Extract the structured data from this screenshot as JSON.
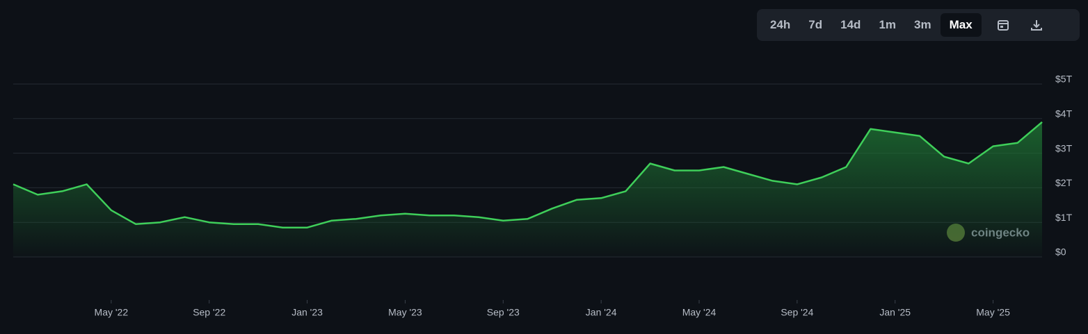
{
  "toolbar": {
    "ranges": [
      "24h",
      "7d",
      "14d",
      "1m",
      "3m",
      "Max"
    ]
  },
  "watermark": "coingecko",
  "chart_data": {
    "type": "area",
    "color": "#3fcf5a",
    "grid": true,
    "x": [
      "2022-01",
      "2022-02",
      "2022-03",
      "2022-04",
      "2022-05",
      "2022-06",
      "2022-07",
      "2022-08",
      "2022-09",
      "2022-10",
      "2022-11",
      "2022-12",
      "2023-01",
      "2023-02",
      "2023-03",
      "2023-04",
      "2023-05",
      "2023-06",
      "2023-07",
      "2023-08",
      "2023-09",
      "2023-10",
      "2023-11",
      "2023-12",
      "2024-01",
      "2024-02",
      "2024-03",
      "2024-04",
      "2024-05",
      "2024-06",
      "2024-07",
      "2024-08",
      "2024-09",
      "2024-10",
      "2024-11",
      "2024-12",
      "2025-01",
      "2025-02",
      "2025-03",
      "2025-04",
      "2025-05",
      "2025-06",
      "2025-07"
    ],
    "values": [
      2.1,
      1.8,
      1.9,
      2.1,
      1.35,
      0.95,
      1.0,
      1.15,
      1.0,
      0.95,
      0.95,
      0.85,
      0.85,
      1.05,
      1.1,
      1.2,
      1.25,
      1.2,
      1.2,
      1.15,
      1.05,
      1.1,
      1.4,
      1.65,
      1.7,
      1.9,
      2.7,
      2.5,
      2.5,
      2.6,
      2.4,
      2.2,
      2.1,
      2.3,
      2.6,
      3.7,
      3.6,
      3.5,
      2.9,
      2.7,
      3.2,
      3.3,
      3.9
    ],
    "xlim": [
      "2022-01",
      "2025-07"
    ],
    "xticks": [
      {
        "value": "2022-05",
        "label": "May '22"
      },
      {
        "value": "2022-09",
        "label": "Sep '22"
      },
      {
        "value": "2023-01",
        "label": "Jan '23"
      },
      {
        "value": "2023-05",
        "label": "May '23"
      },
      {
        "value": "2023-09",
        "label": "Sep '23"
      },
      {
        "value": "2024-01",
        "label": "Jan '24"
      },
      {
        "value": "2024-05",
        "label": "May '24"
      },
      {
        "value": "2024-09",
        "label": "Sep '24"
      },
      {
        "value": "2025-01",
        "label": "Jan '25"
      },
      {
        "value": "2025-05",
        "label": "May '25"
      }
    ],
    "ylim": [
      0,
      5
    ],
    "yticks": [
      {
        "value": 0,
        "label": "$0"
      },
      {
        "value": 1,
        "label": "$1T"
      },
      {
        "value": 2,
        "label": "$2T"
      },
      {
        "value": 3,
        "label": "$3T"
      },
      {
        "value": 4,
        "label": "$4T"
      },
      {
        "value": 5,
        "label": "$5T"
      }
    ]
  }
}
